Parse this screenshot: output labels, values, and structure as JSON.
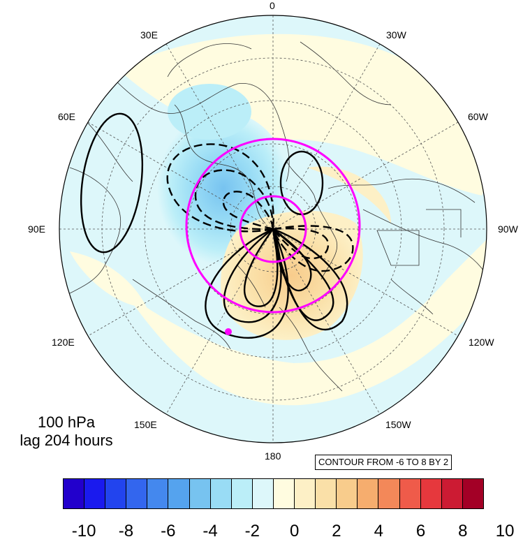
{
  "map": {
    "projection": "polar-stereographic-north",
    "longitude_labels": [
      "0",
      "30E",
      "30W",
      "60E",
      "60W",
      "90E",
      "90W",
      "120E",
      "120W",
      "150E",
      "150W",
      "180"
    ],
    "highlight_color": "#ff00ff",
    "marker_color": "#ff00ff"
  },
  "info": {
    "level": "100 hPa",
    "lag": "lag 204 hours"
  },
  "contour_note": "CONTOUR FROM -6 TO 8 BY 2",
  "colorbar": {
    "colors": [
      "#2200cc",
      "#1a1aee",
      "#2244ee",
      "#3366ee",
      "#4488ee",
      "#55a3ee",
      "#77c3f0",
      "#99dcf5",
      "#bbeef8",
      "#ddf7fa",
      "#fffce0",
      "#fdf0c6",
      "#fae0a8",
      "#f8cc8c",
      "#f6ad6e",
      "#f38859",
      "#ef5b4a",
      "#e6383d",
      "#cc1b33",
      "#a30026"
    ],
    "tick_labels": [
      "-10",
      "-8",
      "-6",
      "-4",
      "-2",
      "0",
      "2",
      "4",
      "6",
      "8",
      "10"
    ]
  }
}
